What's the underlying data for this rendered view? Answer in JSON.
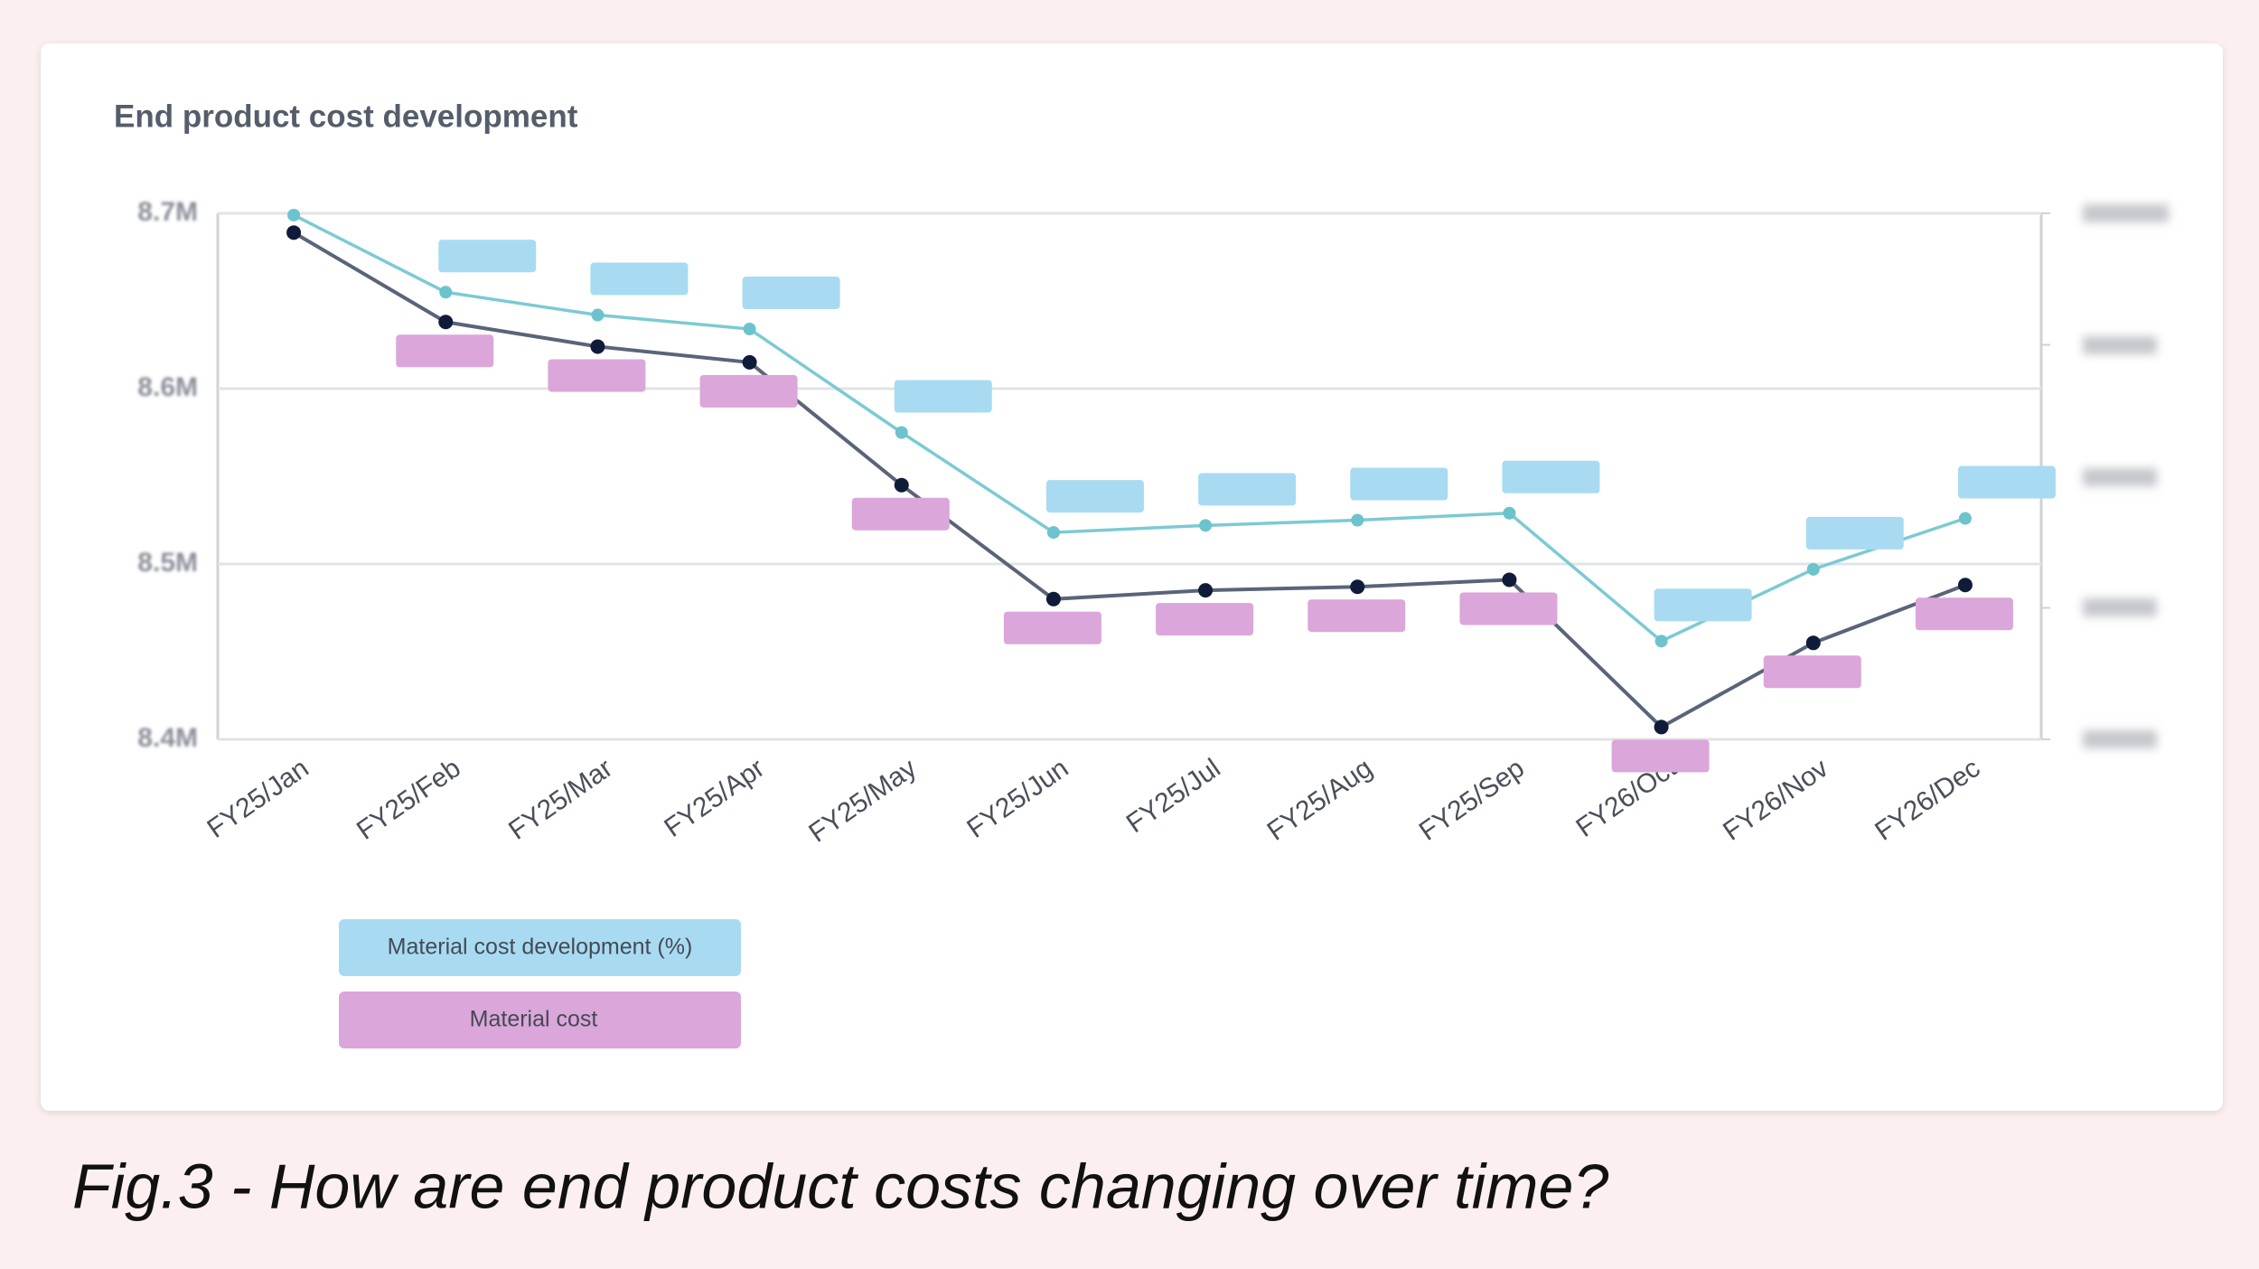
{
  "chart_data": {
    "type": "line",
    "title": "End product cost development",
    "caption": "Fig.3 - How are end product costs changing over time?",
    "categories": [
      "FY25/Jan",
      "FY25/Feb",
      "FY25/Mar",
      "FY25/Apr",
      "FY25/May",
      "FY25/Jun",
      "FY25/Jul",
      "FY25/Aug",
      "FY25/Sep",
      "FY26/Oct",
      "FY26/Nov",
      "FY26/Dec"
    ],
    "series": [
      {
        "name": "Material cost development (%)",
        "color": "#7ccad3",
        "marker_color": "#6cc3cc",
        "label_color": "#a8dbf2",
        "values": [
          8699000,
          8655000,
          8642000,
          8634000,
          8575000,
          8518000,
          8522000,
          8525000,
          8529000,
          8456000,
          8497000,
          8526000
        ]
      },
      {
        "name": "Material cost",
        "color": "#5a6479",
        "marker_color": "#101b3a",
        "label_color": "#dba6d9",
        "values": [
          8689000,
          8638000,
          8624000,
          8615000,
          8545000,
          8480000,
          8485000,
          8487000,
          8491000,
          8407000,
          8455000,
          8488000
        ]
      }
    ],
    "ylim": [
      8400000,
      8700000
    ],
    "yticks": [
      {
        "value": 8400000,
        "label": "8.4M"
      },
      {
        "value": 8500000,
        "label": "8.5M"
      },
      {
        "value": 8600000,
        "label": "8.6M"
      },
      {
        "value": 8700000,
        "label": "8.7M"
      }
    ],
    "grid": true
  }
}
